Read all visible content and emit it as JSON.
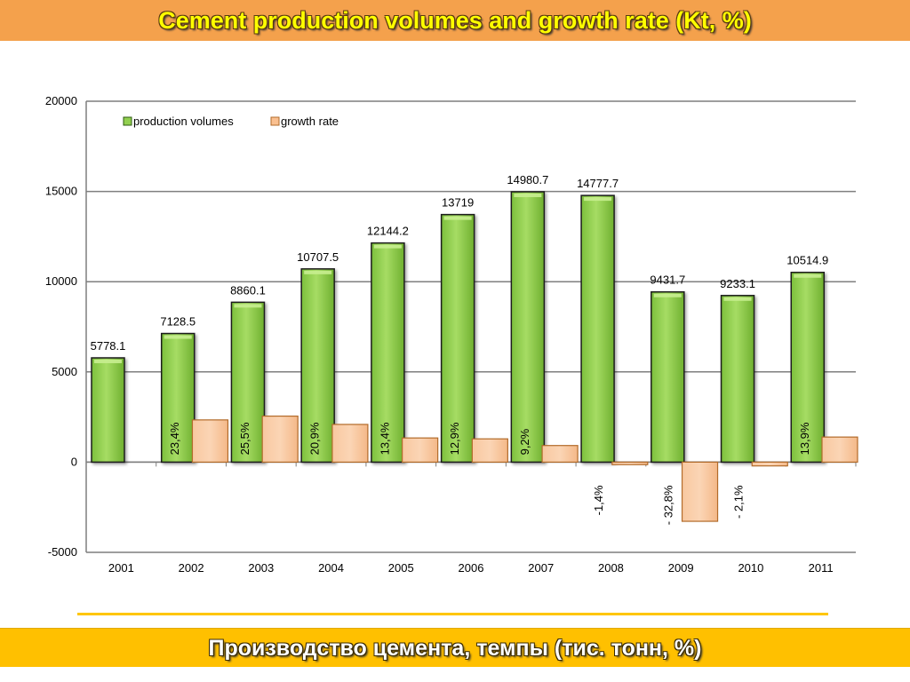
{
  "header": {
    "title": "Cement production volumes and growth rate (Kt, %)"
  },
  "footer": {
    "title": "Производство цемента, темпы (тис. тонн, %)"
  },
  "colors": {
    "header_bg": "#f4a14c",
    "header_text": "#ffff00",
    "footer_bg": "#ffc000",
    "bar_production": "#92d050",
    "bar_growth": "#fac090",
    "gridline": "#7f7f7f"
  },
  "chart_data": {
    "type": "bar",
    "title": "",
    "xlabel": "",
    "ylabel": "",
    "categories": [
      "2001",
      "2002",
      "2003",
      "2004",
      "2005",
      "2006",
      "2007",
      "2008",
      "2009",
      "2010",
      "2011"
    ],
    "ylim": [
      -5000,
      20000
    ],
    "yticks": [
      -5000,
      0,
      5000,
      10000,
      15000,
      20000
    ],
    "grid": true,
    "legend_position": "top-left",
    "series": [
      {
        "name": "production volumes",
        "values": [
          5778.1,
          7128.5,
          8860.1,
          10707.5,
          12144.2,
          13719,
          14980.7,
          14777.7,
          9431.7,
          9233.1,
          10514.9
        ],
        "labels": [
          "5778.1",
          "7128.5",
          "8860.1",
          "10707.5",
          "12144.2",
          "13719",
          "14980.7",
          "14777.7",
          "9431.7",
          "9233.1",
          "10514.9"
        ]
      },
      {
        "name": "growth rate",
        "values": [
          null,
          2340,
          2550,
          2090,
          1340,
          1290,
          920,
          -140,
          -3280,
          -210,
          1390
        ],
        "labels": [
          "",
          "23,4%",
          "25,5%",
          "20,9%",
          "13,4%",
          "12,9%",
          "9,2%",
          "-1,4%",
          "- 32,8%",
          "- 2,1%",
          "13,9%"
        ]
      }
    ]
  }
}
